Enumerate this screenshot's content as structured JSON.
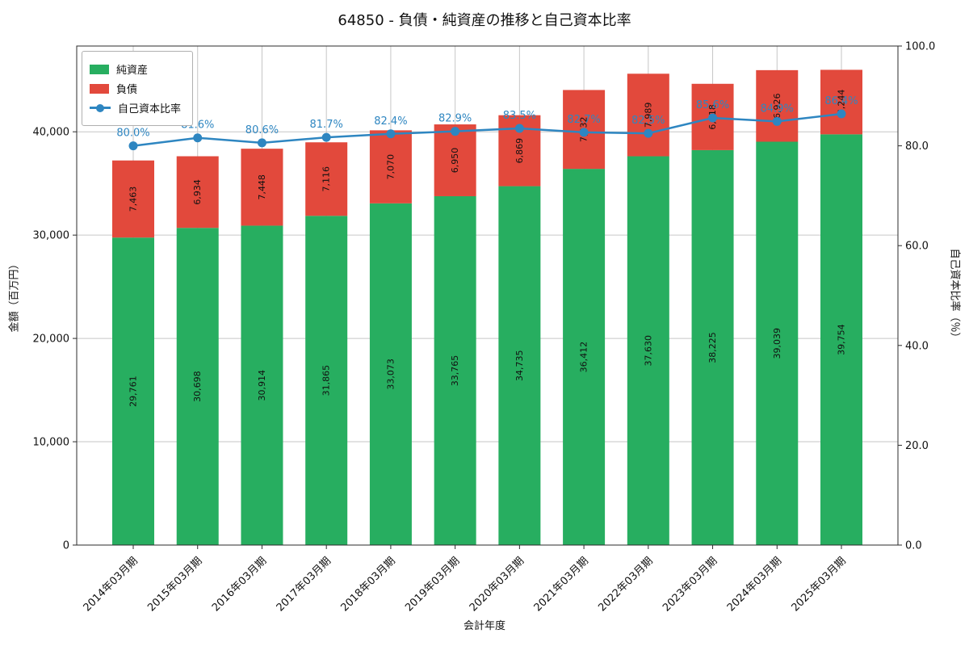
{
  "chart_data": {
    "type": "bar",
    "subtype": "stacked-bar-with-line",
    "title": "64850 - 負債・純資産の推移と自己資本比率",
    "xlabel": "会計年度",
    "ylabel_left": "金額（百万円）",
    "ylabel_right": "自己資本比率（％）",
    "categories": [
      "2014年03月期",
      "2015年03月期",
      "2016年03月期",
      "2017年03月期",
      "2018年03月期",
      "2019年03月期",
      "2020年03月期",
      "2021年03月期",
      "2022年03月期",
      "2023年03月期",
      "2024年03月期",
      "2025年03月期"
    ],
    "series": [
      {
        "name": "純資産",
        "color": "#27ae60",
        "values": [
          29761,
          30698,
          30914,
          31865,
          33073,
          33765,
          34735,
          36412,
          37630,
          38225,
          39039,
          39754
        ],
        "labels": [
          "29,761",
          "30,698",
          "30,914",
          "31,865",
          "33,073",
          "33,765",
          "34,735",
          "36,412",
          "37,630",
          "38,225",
          "39,039",
          "39,754"
        ]
      },
      {
        "name": "負債",
        "color": "#e2493c",
        "values": [
          7463,
          6934,
          7448,
          7116,
          7070,
          6950,
          6869,
          7632,
          7989,
          6418,
          6926,
          6244
        ],
        "labels": [
          "7,463",
          "6,934",
          "7,448",
          "7,116",
          "7,070",
          "6,950",
          "6,869",
          "7,632",
          "7,989",
          "6,418",
          "6,926",
          "6,244"
        ]
      }
    ],
    "line": {
      "name": "自己資本比率",
      "color": "#2e86c1",
      "values": [
        80.0,
        81.6,
        80.6,
        81.7,
        82.4,
        82.9,
        83.5,
        82.7,
        82.5,
        85.6,
        84.9,
        86.4
      ],
      "labels": [
        "80.0%",
        "81.6%",
        "80.6%",
        "81.7%",
        "82.4%",
        "82.9%",
        "83.5%",
        "82.7%",
        "82.5%",
        "85.6%",
        "84.9%",
        "86.4%"
      ]
    },
    "ylim_left": [
      0,
      48300
    ],
    "ylim_right": [
      0,
      100
    ],
    "yticks_left": [
      {
        "v": 0,
        "label": "0"
      },
      {
        "v": 10000,
        "label": "10,000"
      },
      {
        "v": 20000,
        "label": "20,000"
      },
      {
        "v": 30000,
        "label": "30,000"
      },
      {
        "v": 40000,
        "label": "40,000"
      }
    ],
    "yticks_right": [
      {
        "v": 0,
        "label": "0.0"
      },
      {
        "v": 20,
        "label": "20.0"
      },
      {
        "v": 40,
        "label": "40.0"
      },
      {
        "v": 60,
        "label": "60.0"
      },
      {
        "v": 80,
        "label": "80.0"
      },
      {
        "v": 100,
        "label": "100.0"
      }
    ],
    "grid": true,
    "legend_position": "upper-left"
  }
}
